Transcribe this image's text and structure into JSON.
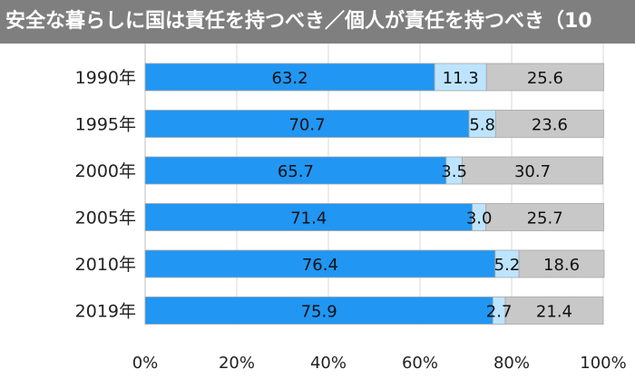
{
  "chart_data": {
    "type": "bar",
    "orientation": "horizontal",
    "stacked": true,
    "title": "安全な暮らしに国は責任を持つべき／個人が責任を持つべき（10",
    "categories": [
      "1990年",
      "1995年",
      "2000年",
      "2005年",
      "2010年",
      "2019年"
    ],
    "series": [
      {
        "values": [
          63.2,
          70.7,
          65.7,
          71.4,
          76.4,
          75.9
        ],
        "color": "#2196f3"
      },
      {
        "values": [
          11.3,
          5.8,
          3.5,
          3.0,
          5.2,
          2.7
        ],
        "color": "#bde4ff"
      },
      {
        "values": [
          25.6,
          23.6,
          30.7,
          25.7,
          18.6,
          21.4
        ],
        "color": "#c8c8c8"
      }
    ],
    "xlim": [
      0,
      100
    ],
    "xticks": [
      "0%",
      "20%",
      "40%",
      "60%",
      "80%",
      "100%"
    ],
    "grid": true,
    "legend": "none",
    "colors": {
      "title_bg": "#7f7f7f",
      "grid": "#d9d9d9",
      "bar_border": "#a6a6a6"
    }
  }
}
